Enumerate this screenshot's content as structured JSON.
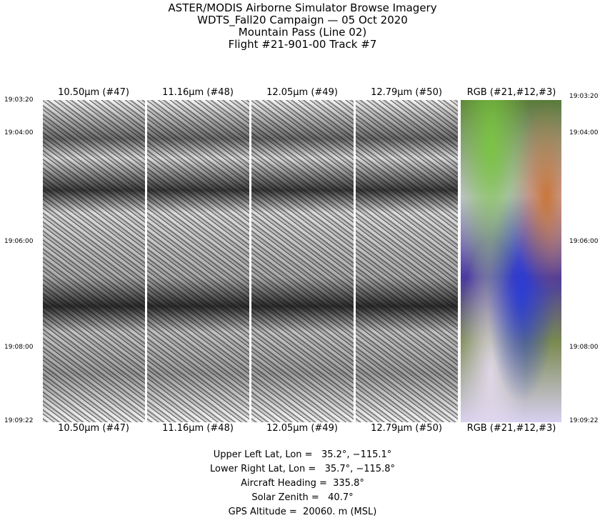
{
  "title_lines": [
    "ASTER/MODIS Airborne Simulator Browse Imagery",
    "WDTS_Fall20 Campaign — 05 Oct 2020",
    "Mountain Pass (Line 02)",
    "Flight #21-901-00 Track #7"
  ],
  "panels": [
    {
      "label": "10.50μm (#47)",
      "type": "grayscale"
    },
    {
      "label": "11.16μm (#48)",
      "type": "grayscale"
    },
    {
      "label": "12.05μm (#49)",
      "type": "grayscale"
    },
    {
      "label": "12.79μm (#50)",
      "type": "grayscale"
    },
    {
      "label": "RGB (#21,#12,#3)",
      "type": "color"
    }
  ],
  "times": [
    "19:03:20",
    "19:04:00",
    "19:06:00",
    "19:08:00",
    "19:09:22"
  ],
  "info": [
    "Upper Left Lat, Lon =   35.2°, −115.1°",
    "Lower Right Lat, Lon =   35.7°, −115.8°",
    "Aircraft Heading =  335.8°",
    "Solar Zenith =   40.7°",
    "GPS Altitude =  20060. m (MSL)"
  ]
}
